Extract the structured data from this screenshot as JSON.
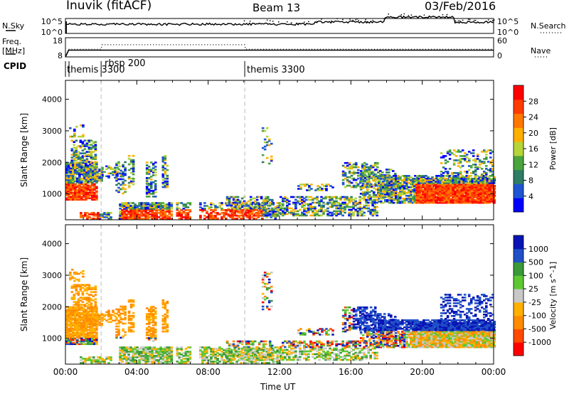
{
  "header": {
    "title": "Inuvik (fitACF)",
    "beam": "Beam 13",
    "date": "03/Feb/2016"
  },
  "side_labels": {
    "nsky": "N.Sky",
    "nsearch": "N.Search",
    "freq_line1": "Freq.",
    "freq_line2": "[MHz]",
    "nave": "Nave",
    "cpid": "CPID"
  },
  "colors": {
    "power_scale": [
      "#0000ff",
      "#1f55d0",
      "#2e7d64",
      "#4aa43c",
      "#b5d43a",
      "#ffb000",
      "#ff7800",
      "#ff3c00",
      "#ff0000"
    ],
    "velocity_scale": [
      "#ff0000",
      "#ff4a00",
      "#ff8c00",
      "#ffb000",
      "#c8c8c8",
      "#5ec832",
      "#3a9a3a",
      "#2050c8",
      "#0a14b4"
    ],
    "axis": "#000000",
    "marker_line": "#bbbbbb"
  },
  "chart_data": [
    {
      "type": "line",
      "id": "noise_panel",
      "x_ticks": [],
      "left_axis": {
        "label": "N.Sky",
        "ticks": [
          "10^5",
          "10^0"
        ]
      },
      "right_axis": {
        "label": "N.Search",
        "ticks": [
          "10^5",
          "10^0"
        ]
      }
    },
    {
      "type": "line",
      "id": "freq_panel",
      "left_axis": {
        "label": "Freq. [MHz]",
        "ticks": [
          "18",
          "8"
        ]
      },
      "right_axis": {
        "label": "Nave",
        "ticks": [
          "60",
          "0"
        ]
      },
      "series": [
        {
          "name": "Freq.",
          "x": [
            0.0,
            0.18,
            2.0,
            10.05,
            10.2,
            24.0
          ],
          "y": [
            8.0,
            11.5,
            11.5,
            11.5,
            11.5,
            11.5
          ]
        },
        {
          "name": "Nave",
          "x": [
            0.18,
            2.0,
            2.05,
            10.05,
            10.1,
            24.0
          ],
          "y": [
            24,
            24,
            38,
            38,
            24,
            24
          ]
        }
      ]
    },
    {
      "type": "table",
      "id": "cpid_panel",
      "label": "CPID",
      "entries": [
        {
          "x": 0.2,
          "text": "themis 3300"
        },
        {
          "x": 2.0,
          "text": "rbsp 200"
        },
        {
          "x": 10.05,
          "text": "themis 3300"
        }
      ]
    },
    {
      "type": "heatmap",
      "id": "power_panel",
      "ylabel": "Slant Range [km]",
      "ylim": [
        180,
        4600
      ],
      "y_ticks": [
        1000,
        2000,
        3000,
        4000
      ],
      "x_range": [
        0,
        24
      ],
      "colorbar": {
        "label": "Power [dB]",
        "ticks": [
          "4",
          "8",
          "12",
          "16",
          "20",
          "24",
          "28"
        ]
      }
    },
    {
      "type": "heatmap",
      "id": "velocity_panel",
      "ylabel": "Slant Range [km]",
      "ylim": [
        180,
        4600
      ],
      "y_ticks": [
        1000,
        2000,
        3000,
        4000
      ],
      "x_range": [
        0,
        24
      ],
      "x_ticks": [
        "00:00",
        "04:00",
        "08:00",
        "12:00",
        "16:00",
        "20:00",
        "00:00"
      ],
      "xlabel": "Time UT",
      "colorbar": {
        "label": "Velocity [m s^-1]",
        "ticks": [
          "-1000",
          "-500",
          "-100",
          "-25",
          "25",
          "100",
          "500",
          "1000"
        ]
      }
    }
  ]
}
